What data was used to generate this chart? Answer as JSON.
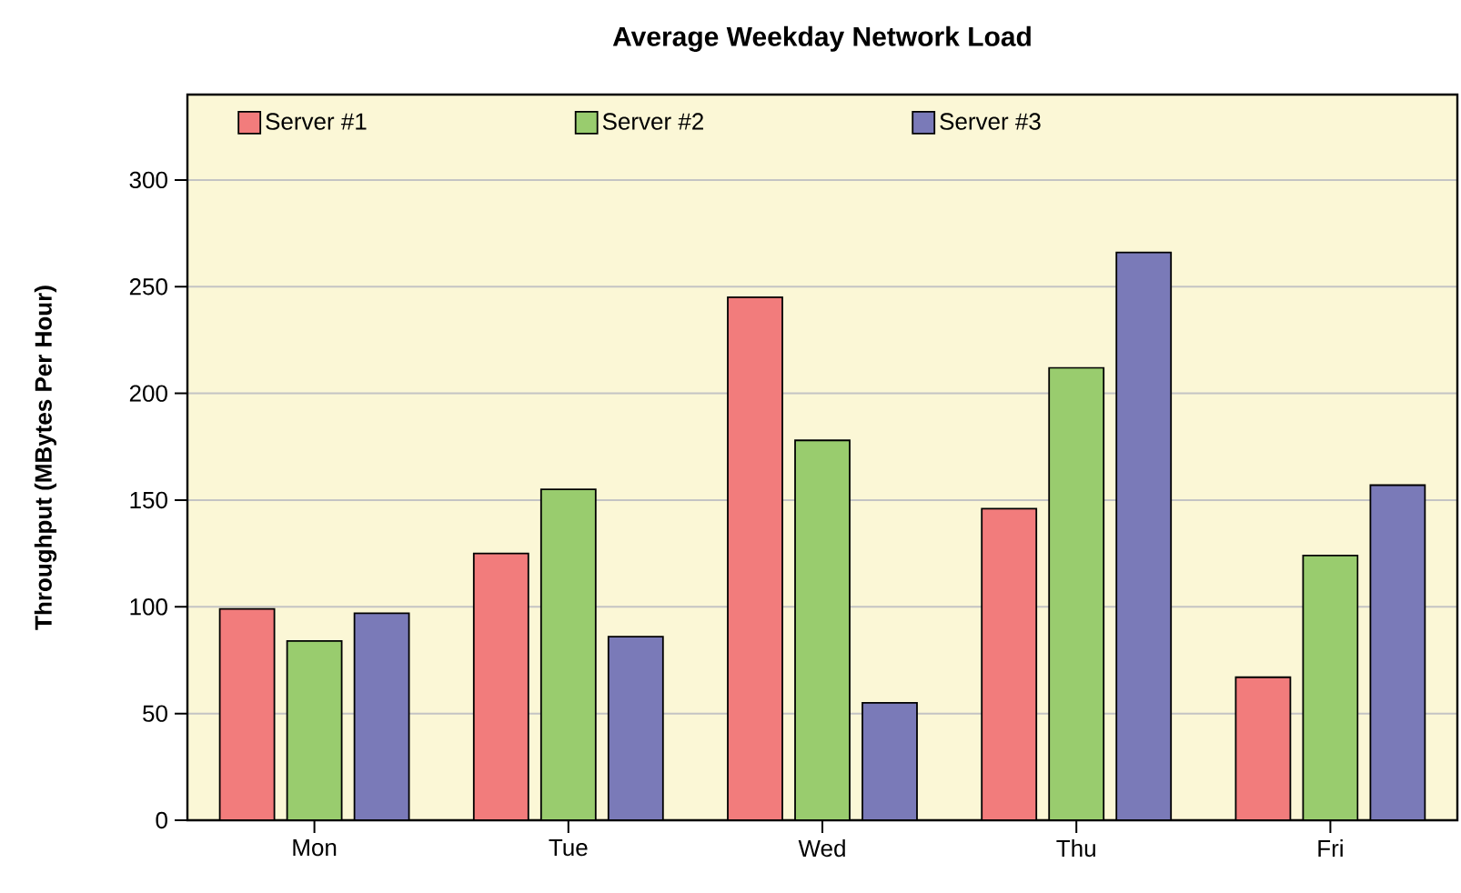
{
  "chart_data": {
    "type": "bar",
    "title": "Average Weekday Network Load",
    "ylabel": "Throughput (MBytes Per Hour)",
    "categories": [
      "Mon",
      "Tue",
      "Wed",
      "Thu",
      "Fri"
    ],
    "series": [
      {
        "name": "Server #1",
        "color": "#f27c7c",
        "values": [
          99,
          125,
          245,
          146,
          67
        ]
      },
      {
        "name": "Server #2",
        "color": "#99cc6e",
        "values": [
          84,
          155,
          178,
          212,
          124
        ]
      },
      {
        "name": "Server #3",
        "color": "#7a7ab8",
        "values": [
          97,
          86,
          55,
          266,
          157
        ]
      }
    ],
    "ylim": [
      0,
      340
    ],
    "yticks": [
      0,
      50,
      100,
      150,
      200,
      250,
      300
    ],
    "grid": "y",
    "legend": "top left"
  }
}
